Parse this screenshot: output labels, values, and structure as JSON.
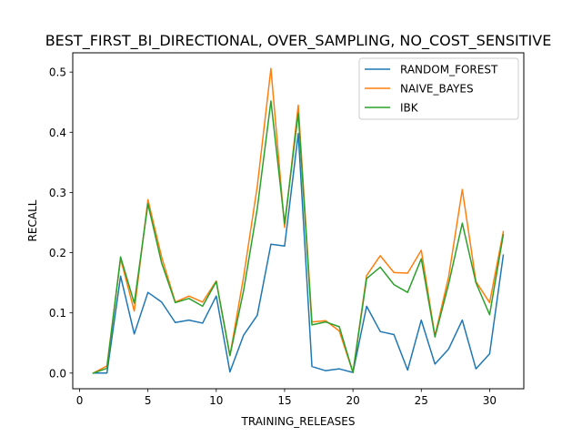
{
  "chart_data": {
    "type": "line",
    "title": "BEST_FIRST_BI_DIRECTIONAL, OVER_SAMPLING, NO_COST_SENSITIVE",
    "xlabel": "TRAINING_RELEASES",
    "ylabel": "RECALL",
    "xlim": [
      -0.5,
      32.5
    ],
    "ylim": [
      -0.026,
      0.532
    ],
    "xticks": [
      0,
      5,
      10,
      15,
      20,
      25,
      30
    ],
    "yticks": [
      0.0,
      0.1,
      0.2,
      0.3,
      0.4,
      0.5
    ],
    "ytick_labels": [
      "0.0",
      "0.1",
      "0.2",
      "0.3",
      "0.4",
      "0.5"
    ],
    "grid": false,
    "legend_position": "top-right",
    "x": [
      1,
      2,
      3,
      4,
      5,
      6,
      7,
      8,
      9,
      10,
      11,
      12,
      13,
      14,
      15,
      16,
      17,
      18,
      19,
      20,
      21,
      22,
      23,
      24,
      25,
      26,
      27,
      28,
      29,
      30,
      31
    ],
    "series": [
      {
        "name": "RANDOM_FOREST",
        "color": "#1f77b4",
        "values": [
          0.0,
          0.0,
          0.161,
          0.065,
          0.134,
          0.118,
          0.084,
          0.088,
          0.083,
          0.128,
          0.002,
          0.063,
          0.096,
          0.214,
          0.211,
          0.398,
          0.011,
          0.004,
          0.007,
          0.001,
          0.111,
          0.069,
          0.064,
          0.005,
          0.088,
          0.015,
          0.04,
          0.088,
          0.007,
          0.032,
          0.196
        ]
      },
      {
        "name": "NAIVE_BAYES",
        "color": "#ff7f0e",
        "values": [
          0.0,
          0.012,
          0.19,
          0.103,
          0.288,
          0.193,
          0.118,
          0.128,
          0.118,
          0.153,
          0.029,
          0.16,
          0.31,
          0.506,
          0.242,
          0.445,
          0.085,
          0.087,
          0.07,
          0.001,
          0.162,
          0.195,
          0.167,
          0.166,
          0.204,
          0.062,
          0.16,
          0.305,
          0.152,
          0.117,
          0.235
        ]
      },
      {
        "name": "IBK",
        "color": "#2ca02c",
        "values": [
          0.0,
          0.008,
          0.193,
          0.116,
          0.281,
          0.183,
          0.117,
          0.124,
          0.111,
          0.152,
          0.029,
          0.137,
          0.273,
          0.452,
          0.248,
          0.432,
          0.08,
          0.085,
          0.077,
          0.001,
          0.157,
          0.176,
          0.147,
          0.134,
          0.19,
          0.06,
          0.148,
          0.249,
          0.15,
          0.097,
          0.23
        ]
      }
    ]
  }
}
